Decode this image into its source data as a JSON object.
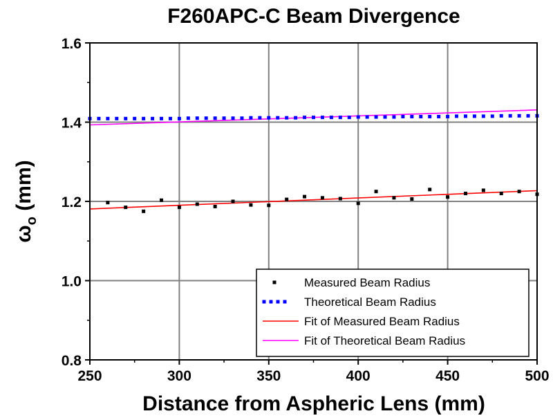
{
  "chart_data": {
    "type": "scatter",
    "title": "F260APC-C Beam Divergence",
    "xlabel": "Distance from Aspheric Lens (mm)",
    "ylabel_main": "ω",
    "ylabel_sub": "o",
    "ylabel_unit": "(mm)",
    "xlim": [
      250,
      500
    ],
    "ylim": [
      0.8,
      1.6
    ],
    "xticks": [
      250,
      300,
      350,
      400,
      450,
      500
    ],
    "xtick_labels": [
      "250",
      "300",
      "350",
      "400",
      "450",
      "500"
    ],
    "yticks": [
      0.8,
      1.0,
      1.2,
      1.4,
      1.6
    ],
    "ytick_labels": [
      "0.8",
      "1.0",
      "1.2",
      "1.4",
      "1.6"
    ],
    "grid": true,
    "legend_position": "bottom-right",
    "series": [
      {
        "name": "Measured Beam Radius",
        "kind": "points",
        "color": "#000000",
        "x": [
          260,
          270,
          280,
          290,
          300,
          310,
          320,
          330,
          340,
          350,
          360,
          370,
          380,
          390,
          400,
          410,
          420,
          430,
          440,
          450,
          460,
          470,
          480,
          490,
          500
        ],
        "y": [
          1.197,
          1.185,
          1.175,
          1.203,
          1.185,
          1.193,
          1.187,
          1.2,
          1.191,
          1.19,
          1.205,
          1.212,
          1.209,
          1.207,
          1.195,
          1.225,
          1.209,
          1.206,
          1.23,
          1.211,
          1.22,
          1.228,
          1.22,
          1.225,
          1.218
        ]
      },
      {
        "name": "Theoretical Beam Radius",
        "kind": "points",
        "color": "#0000ff",
        "x": [
          250,
          255,
          260,
          265,
          270,
          275,
          280,
          285,
          290,
          295,
          300,
          305,
          310,
          315,
          320,
          325,
          330,
          335,
          340,
          345,
          350,
          355,
          360,
          365,
          370,
          375,
          380,
          385,
          390,
          395,
          400,
          405,
          410,
          415,
          420,
          425,
          430,
          435,
          440,
          445,
          450,
          455,
          460,
          465,
          470,
          475,
          480,
          485,
          490,
          495,
          500
        ],
        "y": [
          1.409,
          1.409,
          1.409,
          1.409,
          1.409,
          1.409,
          1.409,
          1.409,
          1.409,
          1.409,
          1.409,
          1.41,
          1.41,
          1.41,
          1.41,
          1.41,
          1.41,
          1.41,
          1.411,
          1.411,
          1.411,
          1.411,
          1.411,
          1.411,
          1.412,
          1.412,
          1.412,
          1.412,
          1.412,
          1.412,
          1.413,
          1.413,
          1.413,
          1.413,
          1.413,
          1.414,
          1.414,
          1.414,
          1.414,
          1.414,
          1.414,
          1.415,
          1.415,
          1.415,
          1.415,
          1.415,
          1.416,
          1.416,
          1.416,
          1.416,
          1.416
        ]
      },
      {
        "name": "Fit of Measured Beam Radius",
        "kind": "line",
        "color": "#ff0000",
        "x": [
          250,
          500
        ],
        "y": [
          1.181,
          1.227
        ]
      },
      {
        "name": "Fit of Theoretical Beam Radius",
        "kind": "line",
        "color": "#ff00ff",
        "x": [
          250,
          500
        ],
        "y": [
          1.393,
          1.431
        ]
      }
    ]
  }
}
